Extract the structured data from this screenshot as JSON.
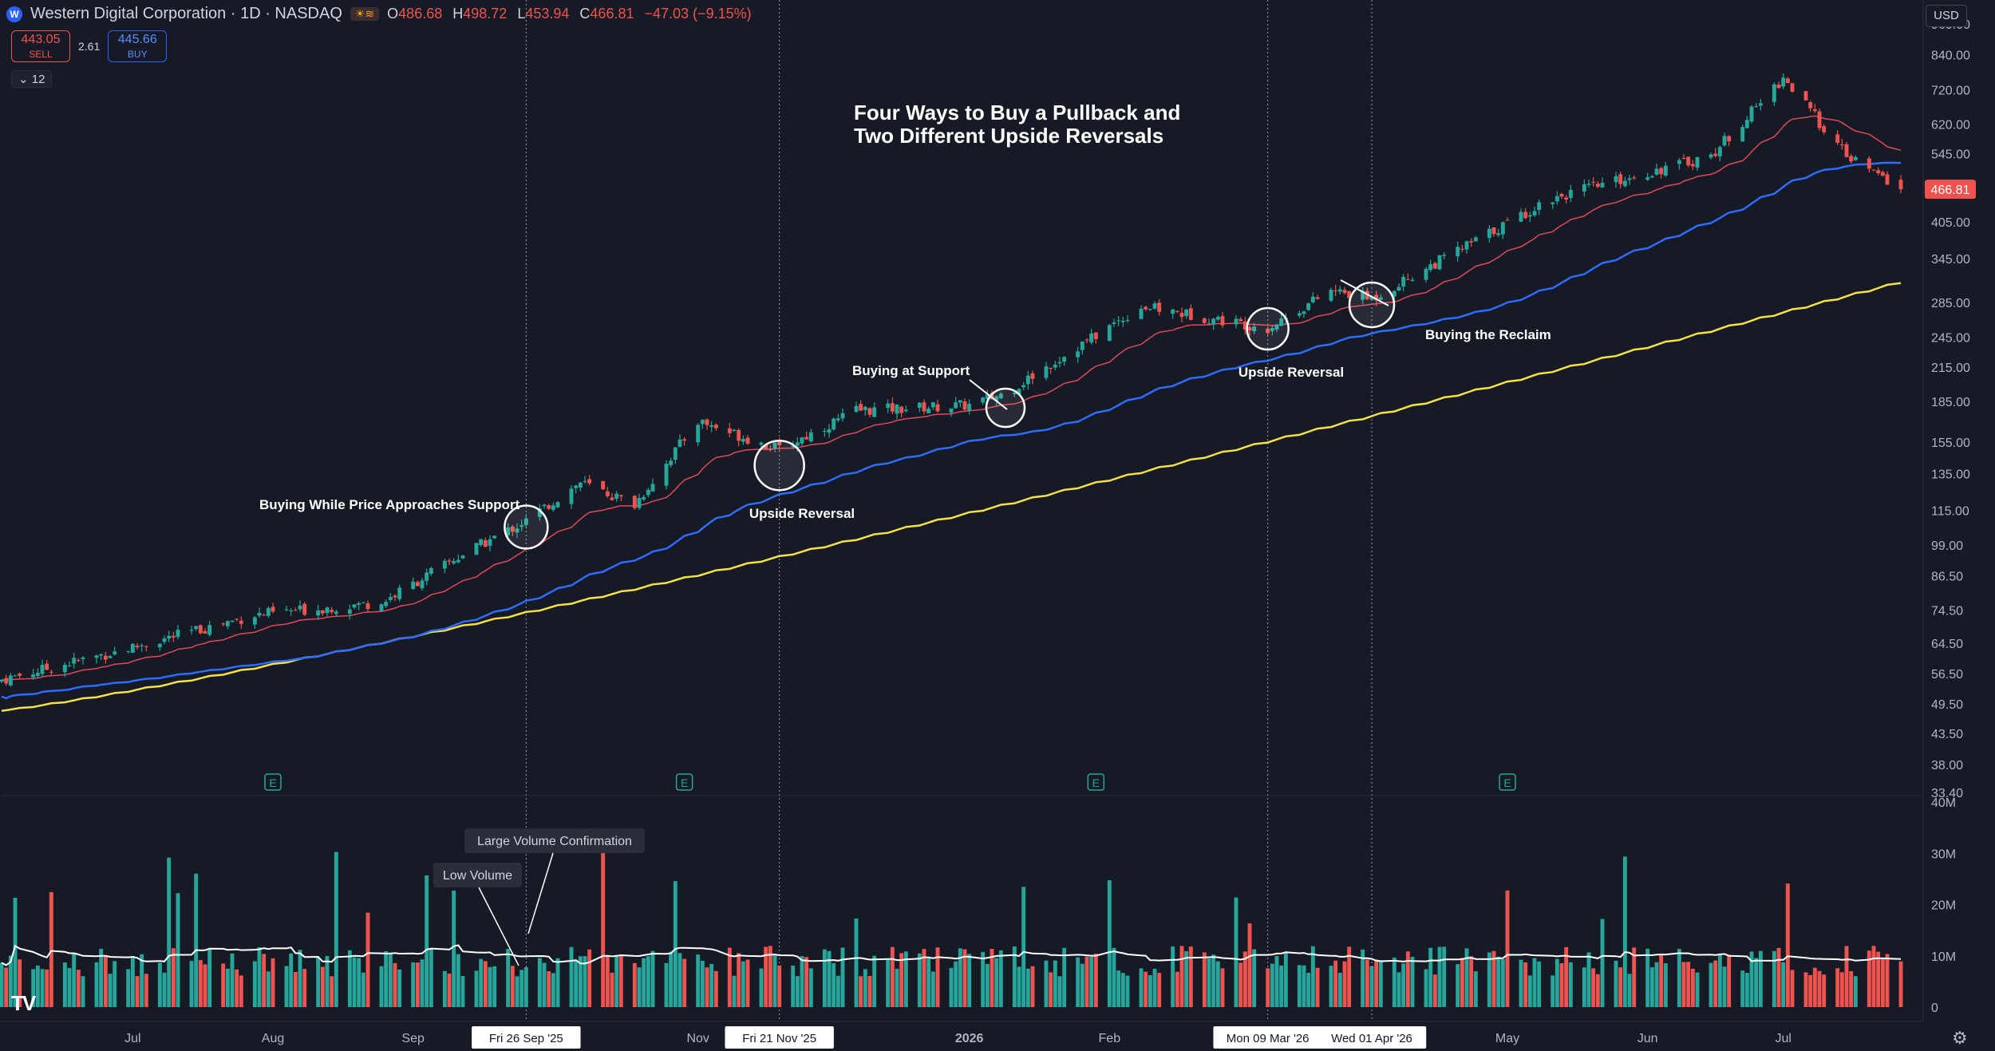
{
  "header": {
    "logo_letter": "W",
    "title": "Western Digital Corporation · 1D · NASDAQ",
    "flags": "☀≋",
    "ohlc": [
      {
        "label": "O",
        "value": "486.68"
      },
      {
        "label": "H",
        "value": "498.72"
      },
      {
        "label": "L",
        "value": "453.94"
      },
      {
        "label": "C",
        "value": "466.81"
      }
    ],
    "change": "−47.03 (−9.15%)"
  },
  "trade": {
    "sell_price": "443.05",
    "sell_label": "SELL",
    "spread": "2.61",
    "buy_price": "445.66",
    "buy_label": "BUY"
  },
  "indicator_toggle": {
    "icon": "chevron-down-icon",
    "count": "12"
  },
  "currency": "USD",
  "colors": {
    "background": "#161a25",
    "up": "#26a69a",
    "down": "#ef5350",
    "ema_red": "#e0485a",
    "ma_blue": "#2f6bff",
    "ma_yellow": "#f5e04a",
    "volume_avg": "#ffffff"
  },
  "chart_data": {
    "type": "candlestick",
    "title": "Four Ways to Buy a Pullback and Two Different Upside Reversals",
    "title_lines": [
      "Four Ways to Buy a Pullback and",
      "Two Different Upside Reversals"
    ],
    "yscale": "log",
    "ylim": [
      33.4,
      960
    ],
    "price_ticks": [
      "960.00",
      "840.00",
      "720.00",
      "620.00",
      "545.00",
      "466.81",
      "405.00",
      "345.00",
      "285.00",
      "245.00",
      "215.00",
      "185.00",
      "155.00",
      "135.00",
      "115.00",
      "99.00",
      "86.50",
      "74.50",
      "64.50",
      "56.50",
      "49.50",
      "43.50",
      "38.00",
      "33.40"
    ],
    "last_price": "466.81",
    "volume_ticks": [
      "40M",
      "30M",
      "20M",
      "10M",
      "0"
    ],
    "x_ticks": [
      "Jul",
      "Aug",
      "Sep",
      "Nov",
      "2026",
      "Feb",
      "May",
      "Jun",
      "Jul"
    ],
    "crosshair_labels": [
      "Fri 26 Sep '25",
      "Fri 21 Nov '25",
      "Mon 09 Mar '26",
      "Wed 01 Apr '26"
    ],
    "earnings_marker": "E",
    "price_path": [
      {
        "date": "2025-06-02",
        "close": 55
      },
      {
        "date": "2025-06-30",
        "close": 63
      },
      {
        "date": "2025-07-28",
        "close": 73
      },
      {
        "date": "2025-08-25",
        "close": 77
      },
      {
        "date": "2025-09-12",
        "close": 95
      },
      {
        "date": "2025-09-26",
        "close": 110
      },
      {
        "date": "2025-10-08",
        "close": 130
      },
      {
        "date": "2025-10-20",
        "close": 118
      },
      {
        "date": "2025-11-03",
        "close": 170
      },
      {
        "date": "2025-11-21",
        "close": 150
      },
      {
        "date": "2025-12-08",
        "close": 178
      },
      {
        "date": "2026-01-02",
        "close": 182
      },
      {
        "date": "2026-01-10",
        "close": 192
      },
      {
        "date": "2026-02-09",
        "close": 280
      },
      {
        "date": "2026-03-09",
        "close": 255
      },
      {
        "date": "2026-03-23",
        "close": 300
      },
      {
        "date": "2026-04-01",
        "close": 290
      },
      {
        "date": "2026-05-11",
        "close": 450
      },
      {
        "date": "2026-06-15",
        "close": 540
      },
      {
        "date": "2026-07-01",
        "close": 760
      },
      {
        "date": "2026-07-15",
        "close": 540
      },
      {
        "date": "2026-07-27",
        "close": 466.81
      }
    ],
    "annotations": [
      {
        "text": "Buying While Price Approaches Support",
        "date": "2025-09-26",
        "price": 110
      },
      {
        "text": "Upside Reversal",
        "date": "2025-11-21",
        "price": 140
      },
      {
        "text": "Buying at Support",
        "date": "2026-01-10",
        "price": 190
      },
      {
        "text": "Upside Reversal",
        "date": "2026-03-09",
        "price": 255
      },
      {
        "text": "Buying the Reclaim",
        "date": "2026-04-01",
        "price": 275
      }
    ],
    "volume_callouts": [
      "Large Volume Confirmation",
      "Low Volume"
    ],
    "grid": false
  }
}
